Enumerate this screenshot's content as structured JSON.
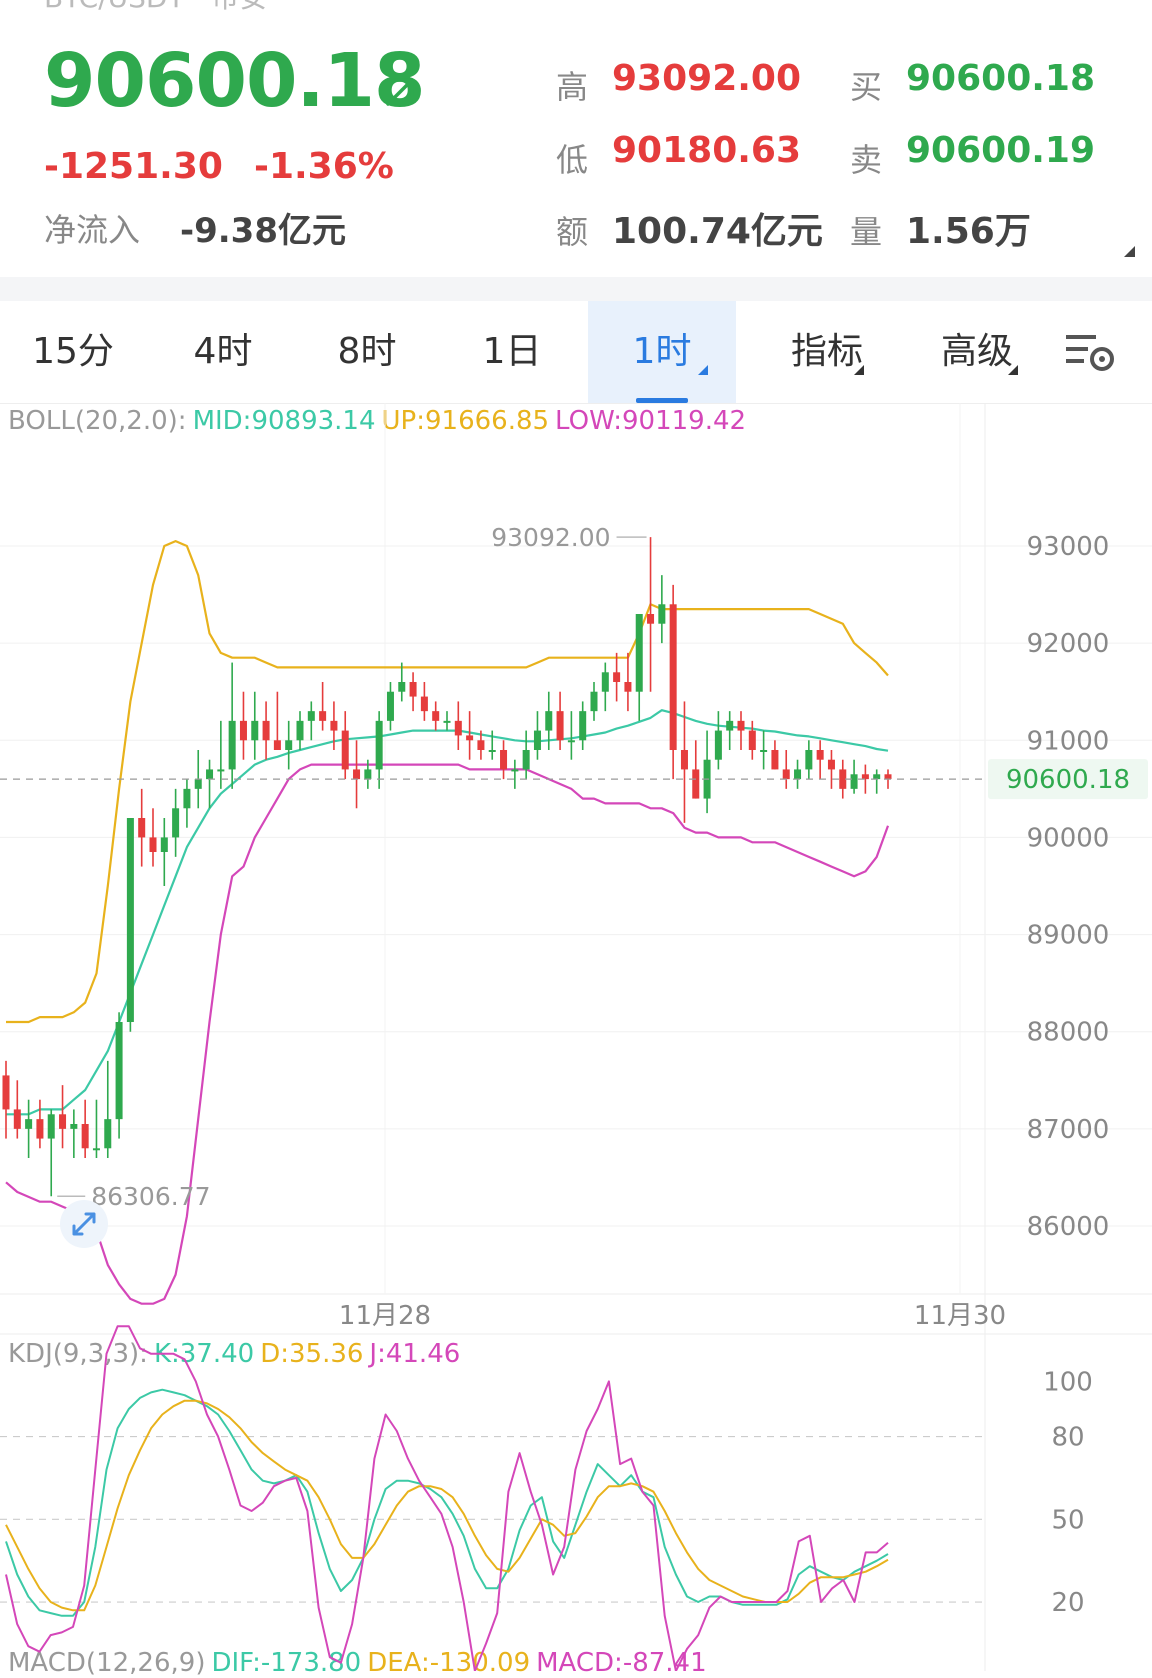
{
  "header": {
    "pair": "BTC/USDT · 币安",
    "last_price": "90600.18",
    "change_abs": "-1251.30",
    "change_pct": "-1.36%",
    "netflow_label": "净流入",
    "netflow_value": "-9.38亿元"
  },
  "quote": {
    "high_label": "高",
    "high": "93092.00",
    "low_label": "低",
    "low": "90180.63",
    "amount_label": "额",
    "amount": "100.74亿元",
    "buy_label": "买",
    "buy": "90600.18",
    "sell_label": "卖",
    "sell": "90600.19",
    "volume_label": "量",
    "volume": "1.56万"
  },
  "tabs": [
    "15分",
    "4时",
    "8时",
    "1日",
    "1时",
    "指标",
    "高级"
  ],
  "active_tab": "1时",
  "indicators": {
    "boll": {
      "name": "BOLL(20,2.0):",
      "mid": "MID:90893.14",
      "up": "UP:91666.85",
      "low": "LOW:90119.42"
    },
    "kdj": {
      "name": "KDJ(9,3,3):",
      "k": "K:37.40",
      "d": "D:35.36",
      "j": "J:41.46"
    },
    "macd": {
      "name": "MACD(12,26,9)",
      "dif": "DIF:-173.80",
      "dea": "DEA:-130.09",
      "macd": "MACD:-87.41"
    }
  },
  "colors": {
    "up": "#2fa94e",
    "down": "#e53c3c",
    "mid": "#3cc9a6",
    "upper": "#e8b21c",
    "lower": "#d447b9",
    "accent": "#2a7be0"
  },
  "chart_data": [
    {
      "type": "candlestick",
      "interval": "1时",
      "x_ticks": [
        "11月28",
        "11月30"
      ],
      "y_ticks": [
        86000,
        87000,
        88000,
        89000,
        90000,
        91000,
        92000,
        93000
      ],
      "ylim": [
        85300,
        94400
      ],
      "current_price_label": "90600.18",
      "high_marker": "93092.00",
      "low_marker": "86306.77",
      "series": [
        {
          "name": "open",
          "values": [
            87550,
            87200,
            87000,
            87100,
            86900,
            87150,
            87000,
            87050,
            86800,
            86800,
            87100,
            88100,
            90200,
            90000,
            89850,
            90000,
            90300,
            90500,
            90600,
            90700,
            90700,
            91200,
            91000,
            91200,
            91000,
            90900,
            91000,
            91200,
            91300,
            91200,
            91100,
            90700,
            90600,
            90700,
            91200,
            91500,
            91600,
            91450,
            91300,
            91200,
            91200,
            91050,
            91000,
            90900,
            90900,
            90700,
            90700,
            90900,
            91100,
            91300,
            91000,
            91000,
            91300,
            91500,
            91700,
            91600,
            91500,
            92300,
            92200,
            92400,
            90900,
            90700,
            90400,
            90800,
            91100,
            91200,
            91100,
            90900,
            90900,
            90700,
            90600,
            90700,
            90900,
            90800,
            90700,
            90500,
            90650,
            90600,
            90650
          ]
        },
        {
          "name": "high",
          "values": [
            87700,
            87500,
            87300,
            87300,
            87200,
            87450,
            87200,
            87300,
            87300,
            87700,
            88200,
            90200,
            90500,
            90300,
            90200,
            90500,
            90600,
            90900,
            90800,
            91200,
            91800,
            91500,
            91500,
            91400,
            91500,
            91200,
            91300,
            91400,
            91600,
            91400,
            91300,
            91000,
            90800,
            91300,
            91600,
            91800,
            91700,
            91600,
            91400,
            91300,
            91400,
            91300,
            91100,
            91100,
            91000,
            90800,
            91100,
            91300,
            91500,
            91500,
            91300,
            91400,
            91600,
            91800,
            91900,
            91900,
            92000,
            93092,
            92700,
            92600,
            91400,
            91000,
            91100,
            91300,
            91300,
            91300,
            91200,
            91100,
            91000,
            90900,
            90800,
            91000,
            91000,
            90900,
            90800,
            90800,
            90750,
            90700,
            90700
          ]
        },
        {
          "name": "low",
          "values": [
            86900,
            86900,
            86700,
            86800,
            86306.77,
            86800,
            86700,
            86700,
            86700,
            86700,
            86900,
            88000,
            89700,
            89700,
            89500,
            89800,
            90100,
            90300,
            90300,
            90500,
            90500,
            90800,
            90800,
            90800,
            90900,
            90700,
            90900,
            91000,
            91100,
            90900,
            90600,
            90300,
            90500,
            90500,
            91100,
            91400,
            91300,
            91200,
            91100,
            91100,
            90900,
            90800,
            90800,
            90800,
            90600,
            90500,
            90600,
            90800,
            90900,
            90900,
            90800,
            90900,
            91200,
            91300,
            91400,
            91300,
            91200,
            91500,
            92000,
            90600,
            90150,
            90400,
            90250,
            90700,
            90900,
            90900,
            90800,
            90700,
            90700,
            90500,
            90500,
            90600,
            90600,
            90500,
            90400,
            90450,
            90450,
            90450,
            90500
          ]
        },
        {
          "name": "close",
          "values": [
            87200,
            87000,
            87100,
            86900,
            87150,
            87000,
            87050,
            86800,
            86800,
            87100,
            88100,
            90200,
            90000,
            89850,
            90000,
            90300,
            90500,
            90600,
            90700,
            90700,
            91200,
            91000,
            91200,
            91000,
            90900,
            91000,
            91200,
            91300,
            91200,
            91100,
            90700,
            90600,
            90700,
            91200,
            91500,
            91600,
            91450,
            91300,
            91200,
            91200,
            91050,
            91000,
            90900,
            90900,
            90700,
            90700,
            90900,
            91100,
            91300,
            91000,
            91000,
            91300,
            91500,
            91700,
            91600,
            91500,
            92300,
            92200,
            92400,
            90900,
            90700,
            90400,
            90800,
            91100,
            91200,
            91100,
            90900,
            90900,
            90700,
            90600,
            90700,
            90900,
            90800,
            90700,
            90500,
            90650,
            90600,
            90650,
            90600.18
          ]
        },
        {
          "name": "MID",
          "values": [
            87150,
            87150,
            87150,
            87200,
            87200,
            87200,
            87300,
            87400,
            87600,
            87800,
            88100,
            88400,
            88700,
            89000,
            89300,
            89600,
            89900,
            90100,
            90300,
            90450,
            90550,
            90650,
            90750,
            90800,
            90830,
            90870,
            90900,
            90930,
            90960,
            90990,
            91010,
            91020,
            91030,
            91040,
            91060,
            91080,
            91100,
            91100,
            91100,
            91100,
            91100,
            91080,
            91060,
            91040,
            91020,
            91000,
            90990,
            90990,
            91000,
            91010,
            91020,
            91040,
            91060,
            91080,
            91120,
            91150,
            91190,
            91230,
            91310,
            91280,
            91240,
            91200,
            91170,
            91150,
            91140,
            91130,
            91120,
            91100,
            91090,
            91070,
            91050,
            91040,
            91020,
            91000,
            90980,
            90960,
            90940,
            90910,
            90893.14
          ]
        },
        {
          "name": "UP",
          "values": [
            88100,
            88100,
            88100,
            88150,
            88150,
            88150,
            88200,
            88300,
            88600,
            89500,
            90500,
            91400,
            92000,
            92600,
            93000,
            93050,
            93000,
            92700,
            92100,
            91900,
            91850,
            91850,
            91850,
            91800,
            91750,
            91750,
            91750,
            91750,
            91750,
            91750,
            91750,
            91750,
            91750,
            91750,
            91750,
            91750,
            91750,
            91750,
            91750,
            91750,
            91750,
            91750,
            91750,
            91750,
            91750,
            91750,
            91750,
            91800,
            91850,
            91850,
            91850,
            91850,
            91850,
            91850,
            91850,
            91850,
            92100,
            92400,
            92350,
            92350,
            92350,
            92350,
            92350,
            92350,
            92350,
            92350,
            92350,
            92350,
            92350,
            92350,
            92350,
            92350,
            92300,
            92250,
            92200,
            92000,
            91900,
            91800,
            91666.85
          ]
        },
        {
          "name": "LOW",
          "values": [
            86450,
            86350,
            86300,
            86250,
            86250,
            86200,
            86150,
            86100,
            85950,
            85600,
            85400,
            85250,
            85200,
            85200,
            85250,
            85500,
            86100,
            87100,
            88100,
            89000,
            89600,
            89700,
            90000,
            90200,
            90400,
            90600,
            90700,
            90750,
            90750,
            90750,
            90750,
            90750,
            90750,
            90750,
            90750,
            90750,
            90750,
            90750,
            90750,
            90750,
            90750,
            90700,
            90700,
            90700,
            90700,
            90700,
            90700,
            90650,
            90600,
            90550,
            90500,
            90400,
            90400,
            90350,
            90350,
            90350,
            90350,
            90300,
            90300,
            90250,
            90100,
            90050,
            90050,
            90000,
            90000,
            90000,
            89950,
            89950,
            89950,
            89900,
            89850,
            89800,
            89750,
            89700,
            89650,
            89600,
            89650,
            89800,
            90119.42
          ]
        }
      ]
    },
    {
      "type": "line",
      "title": "KDJ(9,3,3)",
      "y_ticks": [
        100,
        80,
        50,
        20
      ],
      "ylim": [
        -5,
        115
      ],
      "dashed_levels": [
        80,
        50,
        20
      ],
      "series": [
        {
          "name": "K",
          "values": [
            42,
            30,
            22,
            17,
            16,
            15,
            15,
            20,
            40,
            68,
            83,
            90,
            94,
            96,
            97,
            96,
            95,
            93,
            91,
            88,
            82,
            75,
            68,
            64,
            63,
            64,
            66,
            60,
            45,
            32,
            24,
            28,
            36,
            50,
            61,
            64,
            64,
            63,
            61,
            58,
            52,
            44,
            32,
            25,
            25,
            32,
            46,
            55,
            58,
            42,
            36,
            48,
            60,
            70,
            66,
            62,
            66,
            60,
            58,
            40,
            30,
            22,
            20,
            22,
            22,
            20,
            19,
            19,
            19,
            19,
            21,
            30,
            33,
            31,
            29,
            28,
            31,
            33,
            35,
            37.4
          ]
        },
        {
          "name": "D",
          "values": [
            48,
            40,
            32,
            25,
            20,
            18,
            17,
            17,
            26,
            40,
            54,
            66,
            75,
            83,
            88,
            91,
            93,
            93,
            92,
            90,
            87,
            83,
            78,
            74,
            71,
            68,
            66,
            64,
            58,
            50,
            41,
            36,
            36,
            41,
            48,
            55,
            60,
            62,
            62,
            61,
            58,
            52,
            44,
            37,
            32,
            31,
            36,
            43,
            50,
            48,
            44,
            45,
            51,
            58,
            62,
            62,
            63,
            62,
            60,
            53,
            45,
            38,
            32,
            28,
            26,
            24,
            22,
            21,
            20,
            20,
            20,
            23,
            27,
            29,
            29,
            29,
            30,
            31,
            33,
            35.36
          ]
        },
        {
          "name": "J",
          "values": [
            30,
            12,
            4,
            2,
            8,
            9,
            11,
            26,
            68,
            110,
            120,
            120,
            112,
            110,
            110,
            110,
            108,
            100,
            88,
            80,
            68,
            55,
            53,
            56,
            62,
            64,
            65,
            53,
            18,
            0,
            -2,
            12,
            36,
            72,
            88,
            82,
            72,
            64,
            58,
            52,
            40,
            20,
            -5,
            5,
            16,
            60,
            74,
            60,
            48,
            30,
            40,
            68,
            82,
            90,
            100,
            70,
            72,
            60,
            55,
            15,
            -5,
            3,
            8,
            18,
            22,
            20,
            20,
            20,
            20,
            20,
            24,
            42,
            44,
            20,
            25,
            28,
            20,
            38,
            38,
            41.46
          ]
        }
      ]
    }
  ]
}
